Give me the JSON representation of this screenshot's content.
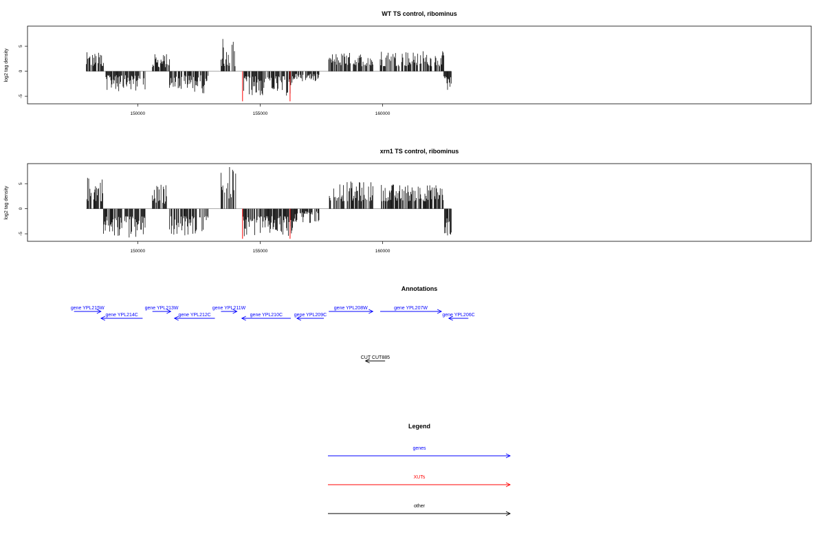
{
  "colors": {
    "gene": "#0000ff",
    "xut": "#ff0000",
    "other": "#000000"
  },
  "chart_data": [
    {
      "type": "bar",
      "title": "WT TS control, ribominus",
      "ylabel": "log2 tag density",
      "xlim": [
        145500,
        177500
      ],
      "ylim": [
        -6.5,
        9.0
      ],
      "xticks": [
        "150000",
        "155000",
        "160000"
      ],
      "yticks": [
        "5",
        "0",
        "-5"
      ],
      "grid": false,
      "series": [
        {
          "x_range": [
            147900,
            148600
          ],
          "y": [
            1.0,
            3.8
          ]
        },
        {
          "x_range": [
            148700,
            150300
          ],
          "y": [
            -4.0,
            -0.8
          ]
        },
        {
          "x_range": [
            150600,
            151300
          ],
          "y": [
            0.8,
            3.5
          ]
        },
        {
          "x_range": [
            151300,
            152900
          ],
          "y": [
            -4.5,
            -0.8
          ]
        },
        {
          "x_range": [
            153400,
            154000
          ],
          "y": [
            1.0,
            6.6
          ]
        },
        {
          "x_range": [
            154300,
            156400
          ],
          "y": [
            -5.0,
            -1.0
          ]
        },
        {
          "x_range": [
            156400,
            157400
          ],
          "y": [
            -2.0,
            -0.5
          ]
        },
        {
          "x_range": [
            157800,
            159600
          ],
          "y": [
            1.0,
            3.8
          ]
        },
        {
          "x_range": [
            159900,
            162500
          ],
          "y": [
            1.0,
            4.2
          ]
        },
        {
          "x_range": [
            162500,
            162800
          ],
          "y": [
            -4.0,
            -1.0
          ]
        }
      ],
      "highlights": [
        {
          "x": 154280,
          "y": -6.0
        },
        {
          "x": 156220,
          "y": -6.0
        }
      ]
    },
    {
      "type": "bar",
      "title": "xrn1 TS control, ribominus",
      "ylabel": "log2 tag density",
      "xlim": [
        145500,
        177500
      ],
      "ylim": [
        -6.5,
        9.0
      ],
      "xticks": [
        "150000",
        "155000",
        "160000"
      ],
      "yticks": [
        "5",
        "0",
        "-5"
      ],
      "grid": false,
      "series": [
        {
          "x_range": [
            147900,
            148600
          ],
          "y": [
            1.5,
            6.5
          ]
        },
        {
          "x_range": [
            148600,
            150300
          ],
          "y": [
            -6.0,
            -1.5
          ]
        },
        {
          "x_range": [
            150600,
            151300
          ],
          "y": [
            1.0,
            5.0
          ]
        },
        {
          "x_range": [
            151300,
            152900
          ],
          "y": [
            -5.5,
            -1.5
          ]
        },
        {
          "x_range": [
            153400,
            154000
          ],
          "y": [
            2.0,
            8.5
          ]
        },
        {
          "x_range": [
            154300,
            156400
          ],
          "y": [
            -5.5,
            -1.5
          ]
        },
        {
          "x_range": [
            156400,
            157400
          ],
          "y": [
            -3.0,
            -0.5
          ]
        },
        {
          "x_range": [
            157800,
            159600
          ],
          "y": [
            1.5,
            5.5
          ]
        },
        {
          "x_range": [
            159900,
            162500
          ],
          "y": [
            1.5,
            5.0
          ]
        },
        {
          "x_range": [
            162500,
            162800
          ],
          "y": [
            -6.0,
            -1.5
          ]
        }
      ],
      "highlights": [
        {
          "x": 154280,
          "y": -6.0
        },
        {
          "x": 156220,
          "y": -6.0
        }
      ]
    }
  ],
  "annotations": {
    "title": "Annotations",
    "features": [
      {
        "label": "gene YPL215W",
        "start": 147400,
        "end": 148500,
        "strand": "+",
        "kind": "gene",
        "row": 0
      },
      {
        "label": "gene YPL214C",
        "start": 148500,
        "end": 150200,
        "strand": "-",
        "kind": "gene",
        "row": 1
      },
      {
        "label": "gene YPL213W",
        "start": 150600,
        "end": 151350,
        "strand": "+",
        "kind": "gene",
        "row": 0
      },
      {
        "label": "gene YPL212C",
        "start": 151500,
        "end": 153150,
        "strand": "-",
        "kind": "gene",
        "row": 1
      },
      {
        "label": "gene YPL211W",
        "start": 153400,
        "end": 154050,
        "strand": "+",
        "kind": "gene",
        "row": 0
      },
      {
        "label": "gene YPL210C",
        "start": 154250,
        "end": 156250,
        "strand": "-",
        "kind": "gene",
        "row": 1
      },
      {
        "label": "gene YPL209C",
        "start": 156500,
        "end": 157600,
        "strand": "-",
        "kind": "gene",
        "row": 1
      },
      {
        "label": "gene YPL208W",
        "start": 157800,
        "end": 159600,
        "strand": "+",
        "kind": "gene",
        "row": 0
      },
      {
        "label": "gene YPL207W",
        "start": 159900,
        "end": 162400,
        "strand": "+",
        "kind": "gene",
        "row": 0
      },
      {
        "label": "gene YPL206C",
        "start": 162700,
        "end": 163500,
        "strand": "-",
        "kind": "gene",
        "row": 1
      },
      {
        "label": "CUT CUT885",
        "start": 159300,
        "end": 160100,
        "strand": "-",
        "kind": "other",
        "row": 2
      }
    ]
  },
  "legend": {
    "title": "Legend",
    "items": [
      {
        "label": "genes",
        "kind": "gene"
      },
      {
        "label": "XUTs",
        "kind": "xut"
      },
      {
        "label": "other",
        "kind": "other"
      }
    ]
  }
}
